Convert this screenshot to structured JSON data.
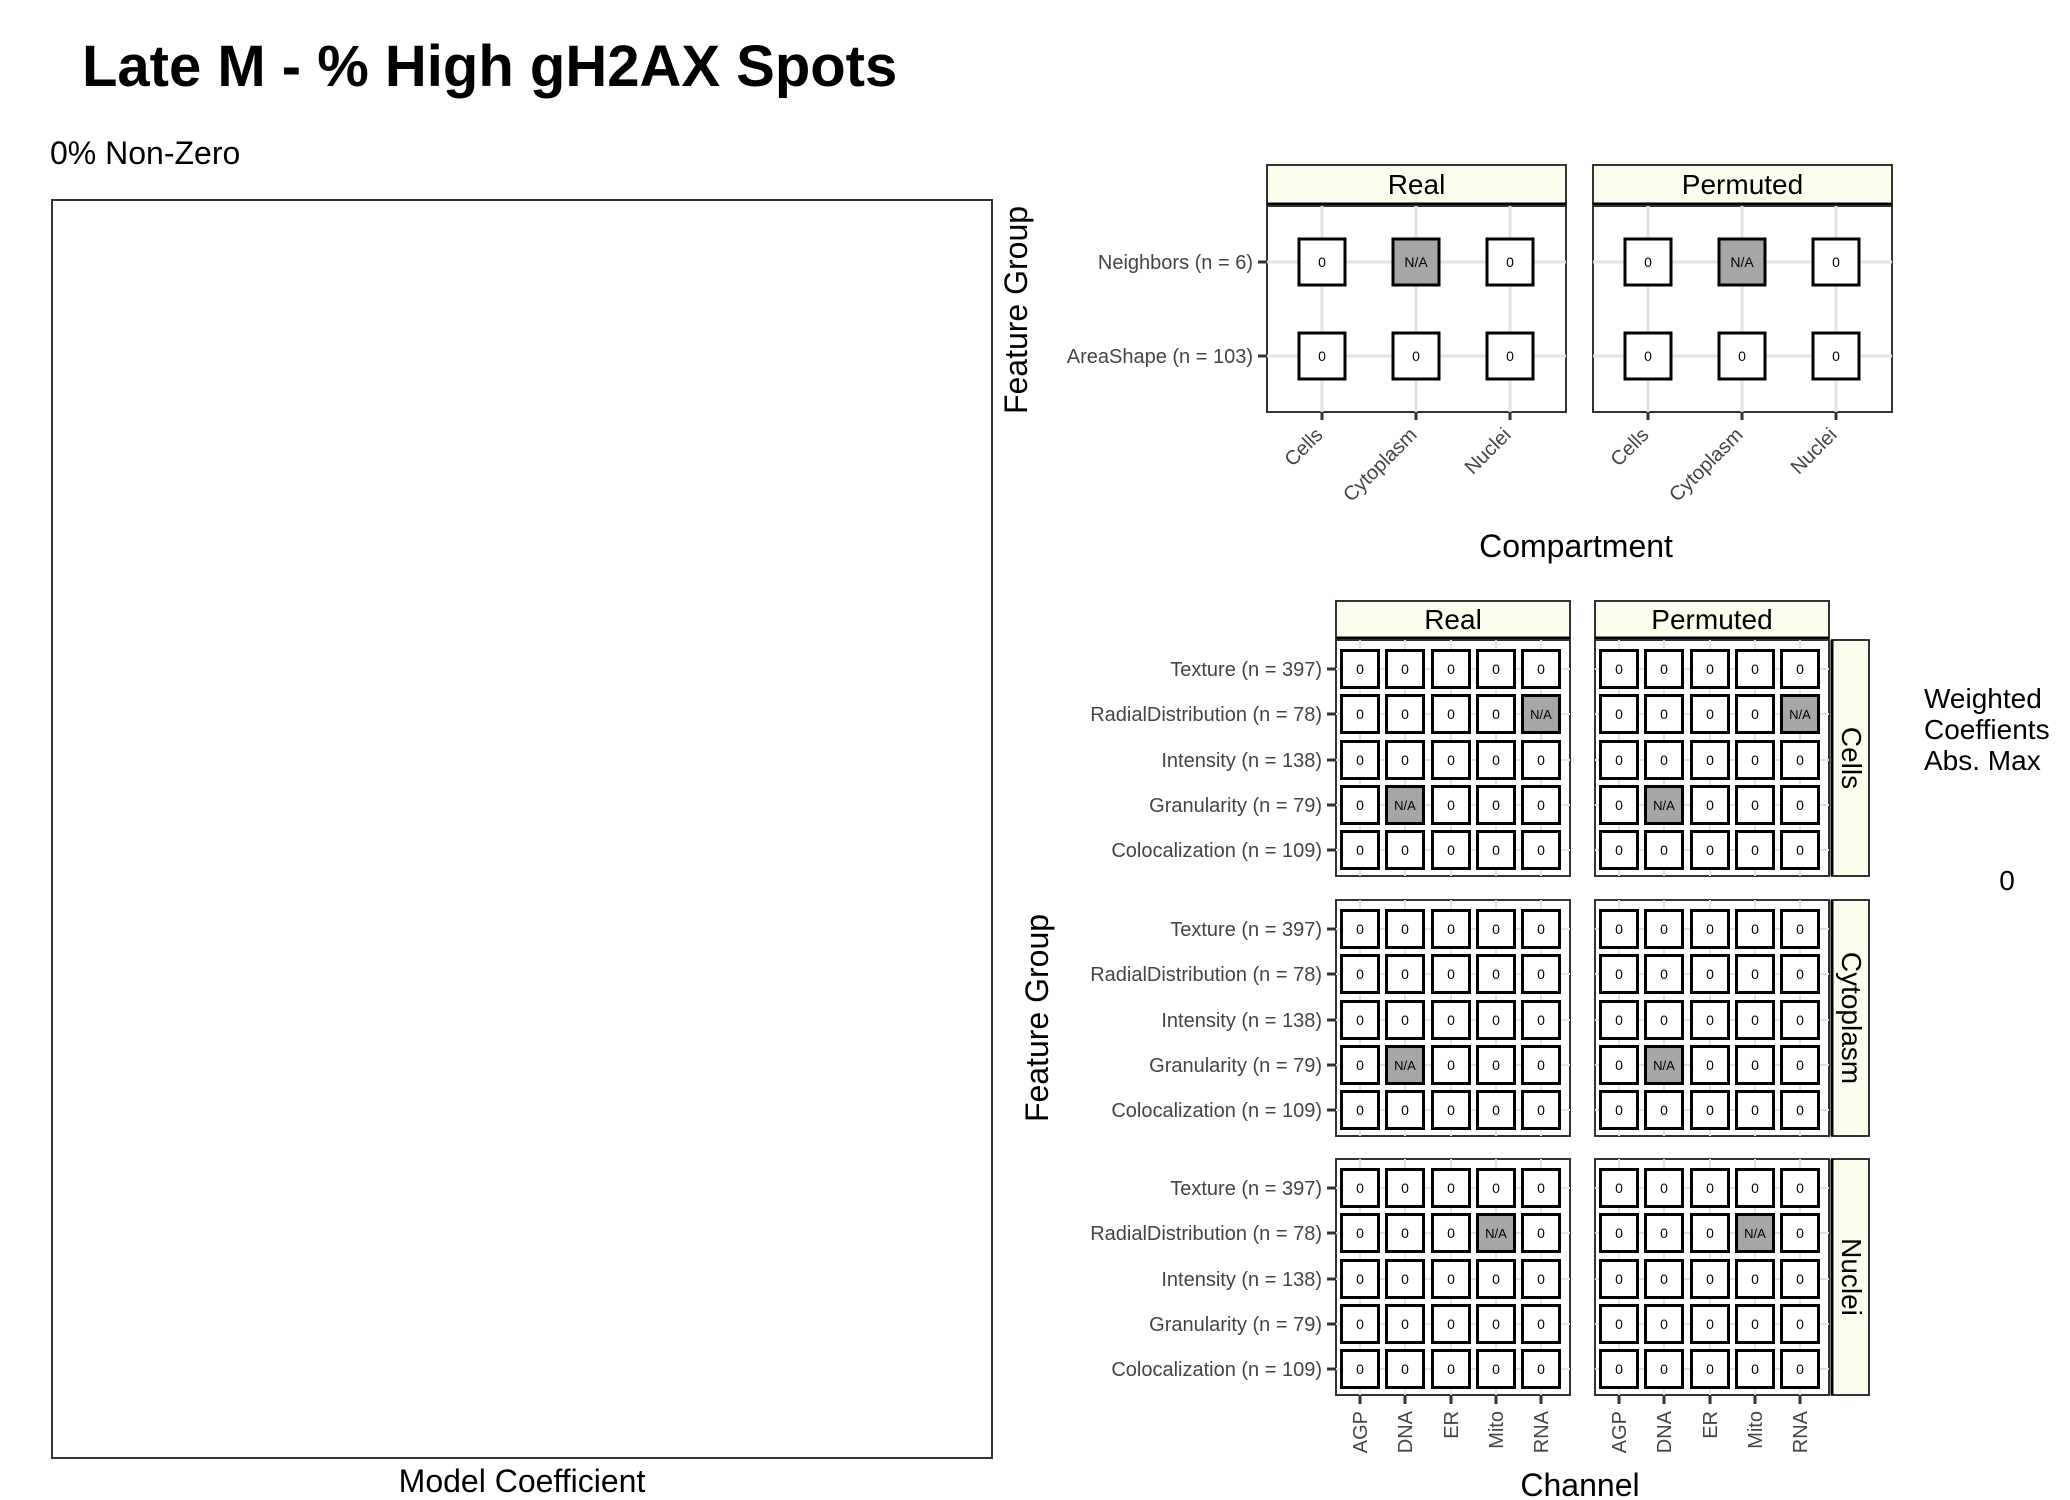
{
  "title": "Late M - % High gH2AX Spots",
  "subtitle": "0% Non-Zero",
  "left_panel": {
    "xlabel": "Model Coefficient"
  },
  "top_panel": {
    "ylabel": "Feature Group",
    "xlabel": "Compartment"
  },
  "bottom_panel": {
    "ylabel": "Feature Group",
    "xlabel": "Channel"
  },
  "legend": {
    "title_lines": [
      "Weighted",
      "Coeffients",
      "Abs. Max"
    ],
    "value_label": "0"
  },
  "colors": {
    "strip_fill": "#fdfdee",
    "na_fill": "#a6a6a6",
    "tile_fill": "#ffffff",
    "grid": "#e3e3e3",
    "border": "#333333"
  },
  "chart_data": [
    {
      "type": "scatter",
      "name": "model-coefficient-panel",
      "xlabel": "Model Coefficient",
      "series": []
    },
    {
      "type": "heatmap",
      "name": "compartment-heatmap",
      "xlabel": "Compartment",
      "ylabel": "Feature Group",
      "facets": [
        "Real",
        "Permuted"
      ],
      "x": [
        "Cells",
        "Cytoplasm",
        "Nuclei"
      ],
      "y": [
        "Neighbors (n = 6)",
        "AreaShape (n = 103)"
      ],
      "cells": {
        "Real": [
          [
            "0",
            "N/A",
            "0"
          ],
          [
            "0",
            "0",
            "0"
          ]
        ],
        "Permuted": [
          [
            "0",
            "N/A",
            "0"
          ],
          [
            "0",
            "0",
            "0"
          ]
        ]
      }
    },
    {
      "type": "heatmap",
      "name": "channel-heatmap",
      "xlabel": "Channel",
      "ylabel": "Feature Group",
      "facets": [
        "Real",
        "Permuted"
      ],
      "row_facets": [
        "Cells",
        "Cytoplasm",
        "Nuclei"
      ],
      "x": [
        "AGP",
        "DNA",
        "ER",
        "Mito",
        "RNA"
      ],
      "y": [
        "Texture (n = 397)",
        "RadialDistribution (n = 78)",
        "Intensity (n = 138)",
        "Granularity (n = 79)",
        "Colocalization (n = 109)"
      ],
      "cells": {
        "Cells": {
          "Real": [
            [
              "0",
              "0",
              "0",
              "0",
              "0"
            ],
            [
              "0",
              "0",
              "0",
              "0",
              "N/A"
            ],
            [
              "0",
              "0",
              "0",
              "0",
              "0"
            ],
            [
              "0",
              "N/A",
              "0",
              "0",
              "0"
            ],
            [
              "0",
              "0",
              "0",
              "0",
              "0"
            ]
          ],
          "Permuted": [
            [
              "0",
              "0",
              "0",
              "0",
              "0"
            ],
            [
              "0",
              "0",
              "0",
              "0",
              "N/A"
            ],
            [
              "0",
              "0",
              "0",
              "0",
              "0"
            ],
            [
              "0",
              "N/A",
              "0",
              "0",
              "0"
            ],
            [
              "0",
              "0",
              "0",
              "0",
              "0"
            ]
          ]
        },
        "Cytoplasm": {
          "Real": [
            [
              "0",
              "0",
              "0",
              "0",
              "0"
            ],
            [
              "0",
              "0",
              "0",
              "0",
              "0"
            ],
            [
              "0",
              "0",
              "0",
              "0",
              "0"
            ],
            [
              "0",
              "N/A",
              "0",
              "0",
              "0"
            ],
            [
              "0",
              "0",
              "0",
              "0",
              "0"
            ]
          ],
          "Permuted": [
            [
              "0",
              "0",
              "0",
              "0",
              "0"
            ],
            [
              "0",
              "0",
              "0",
              "0",
              "0"
            ],
            [
              "0",
              "0",
              "0",
              "0",
              "0"
            ],
            [
              "0",
              "N/A",
              "0",
              "0",
              "0"
            ],
            [
              "0",
              "0",
              "0",
              "0",
              "0"
            ]
          ]
        },
        "Nuclei": {
          "Real": [
            [
              "0",
              "0",
              "0",
              "0",
              "0"
            ],
            [
              "0",
              "0",
              "0",
              "N/A",
              "0"
            ],
            [
              "0",
              "0",
              "0",
              "0",
              "0"
            ],
            [
              "0",
              "0",
              "0",
              "0",
              "0"
            ],
            [
              "0",
              "0",
              "0",
              "0",
              "0"
            ]
          ],
          "Permuted": [
            [
              "0",
              "0",
              "0",
              "0",
              "0"
            ],
            [
              "0",
              "0",
              "0",
              "N/A",
              "0"
            ],
            [
              "0",
              "0",
              "0",
              "0",
              "0"
            ],
            [
              "0",
              "0",
              "0",
              "0",
              "0"
            ],
            [
              "0",
              "0",
              "0",
              "0",
              "0"
            ]
          ]
        }
      }
    }
  ]
}
